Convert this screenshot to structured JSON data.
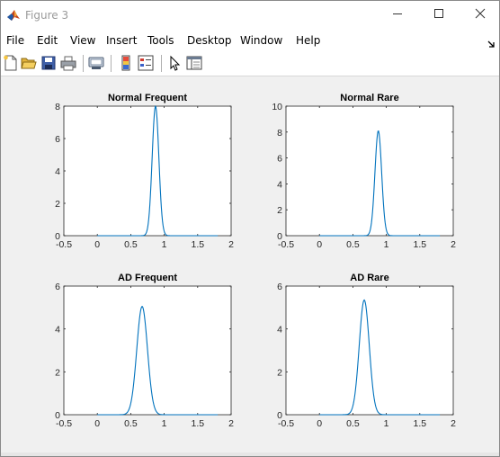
{
  "window": {
    "title": "Figure 3",
    "icon": "matlab-icon",
    "controls": [
      "minimize-icon",
      "maximize-icon",
      "close-icon"
    ]
  },
  "menu": {
    "items": [
      "File",
      "Edit",
      "View",
      "Insert",
      "Tools",
      "Desktop",
      "Window",
      "Help"
    ],
    "more_icon": "menu-overflow-arrow-icon"
  },
  "toolbar": {
    "buttons": [
      "new-figure-icon",
      "open-file-icon",
      "save-icon",
      "print-icon",
      "link-plot-icon",
      "insert-colorbar-icon",
      "insert-legend-icon",
      "edit-plot-arrow-icon",
      "property-inspector-icon"
    ]
  },
  "colors": {
    "line": "#0072bd",
    "axes_bg": "#ffffff",
    "figure_bg": "#f0f0f0"
  },
  "chart_data": [
    {
      "type": "line",
      "title": "Normal Frequent",
      "xlim": [
        -0.5,
        2
      ],
      "ylim": [
        0,
        8
      ],
      "xticks": [
        "-0.5",
        "0",
        "0.5",
        "1",
        "1.5",
        "2"
      ],
      "yticks": [
        "0",
        "2",
        "4",
        "6",
        "8"
      ],
      "xtick_values": [
        -0.5,
        0,
        0.5,
        1,
        1.5,
        2
      ],
      "ytick_values": [
        0,
        2,
        4,
        6,
        8
      ],
      "x_range": [
        0,
        1.8
      ],
      "peak": 8,
      "mu": 0.87,
      "sigma": 0.05
    },
    {
      "type": "line",
      "title": "Normal Rare",
      "xlim": [
        -0.5,
        2
      ],
      "ylim": [
        0,
        10
      ],
      "xticks": [
        "-0.5",
        "0",
        "0.5",
        "1",
        "1.5",
        "2"
      ],
      "yticks": [
        "0",
        "2",
        "4",
        "6",
        "8",
        "10"
      ],
      "xtick_values": [
        -0.5,
        0,
        0.5,
        1,
        1.5,
        2
      ],
      "ytick_values": [
        0,
        2,
        4,
        6,
        8,
        10
      ],
      "x_range": [
        0,
        1.8
      ],
      "peak": 8.1,
      "mu": 0.88,
      "sigma": 0.05
    },
    {
      "type": "line",
      "title": "AD Frequent",
      "xlim": [
        -0.5,
        2
      ],
      "ylim": [
        0,
        6
      ],
      "xticks": [
        "-0.5",
        "0",
        "0.5",
        "1",
        "1.5",
        "2"
      ],
      "yticks": [
        "0",
        "2",
        "4",
        "6"
      ],
      "xtick_values": [
        -0.5,
        0,
        0.5,
        1,
        1.5,
        2
      ],
      "ytick_values": [
        0,
        2,
        4,
        6
      ],
      "x_range": [
        0,
        1.8
      ],
      "peak": 5.05,
      "mu": 0.67,
      "sigma": 0.08
    },
    {
      "type": "line",
      "title": "AD Rare",
      "xlim": [
        -0.5,
        2
      ],
      "ylim": [
        0,
        6
      ],
      "xticks": [
        "-0.5",
        "0",
        "0.5",
        "1",
        "1.5",
        "2"
      ],
      "yticks": [
        "0",
        "2",
        "4",
        "6"
      ],
      "xtick_values": [
        -0.5,
        0,
        0.5,
        1,
        1.5,
        2
      ],
      "ytick_values": [
        0,
        2,
        4,
        6
      ],
      "x_range": [
        0,
        1.8
      ],
      "peak": 5.35,
      "mu": 0.67,
      "sigma": 0.075
    }
  ]
}
